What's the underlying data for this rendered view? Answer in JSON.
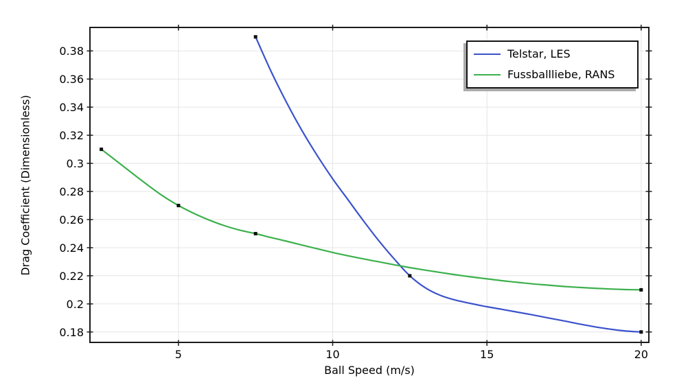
{
  "chart_data": {
    "type": "line",
    "title": "",
    "xlabel": "Ball Speed (m/s)",
    "ylabel": "Drag Coefficient (Dimensionless)",
    "x_range": [
      2.13,
      20.25
    ],
    "y_range": [
      0.1726,
      0.3967
    ],
    "grid": true,
    "legend_position": "top-right",
    "frame_color": "#1a1a1a",
    "grid_color": "#e4e4e4",
    "marker_color": "#111111",
    "x_ticks": [
      {
        "value": 5,
        "label": "5"
      },
      {
        "value": 10,
        "label": "10"
      },
      {
        "value": 15,
        "label": "15"
      },
      {
        "value": 20,
        "label": "20"
      }
    ],
    "y_ticks": [
      {
        "value": 0.18,
        "label": "0.18"
      },
      {
        "value": 0.2,
        "label": "0.2"
      },
      {
        "value": 0.22,
        "label": "0.22"
      },
      {
        "value": 0.24,
        "label": "0.24"
      },
      {
        "value": 0.26,
        "label": "0.26"
      },
      {
        "value": 0.28,
        "label": "0.28"
      },
      {
        "value": 0.3,
        "label": "0.3"
      },
      {
        "value": 0.32,
        "label": "0.32"
      },
      {
        "value": 0.34,
        "label": "0.34"
      },
      {
        "value": 0.36,
        "label": "0.36"
      },
      {
        "value": 0.38,
        "label": "0.38"
      }
    ],
    "series": [
      {
        "name": "Telstar, LES",
        "color": "#3a52cc",
        "marker": "square",
        "points": [
          [
            7.5,
            0.39
          ],
          [
            12.5,
            0.22
          ],
          [
            20,
            0.18
          ]
        ],
        "curve": [
          [
            7.5,
            0.39
          ],
          [
            8,
            0.3655
          ],
          [
            8.5,
            0.3435
          ],
          [
            9,
            0.3235
          ],
          [
            9.5,
            0.3055
          ],
          [
            10,
            0.289
          ],
          [
            10.5,
            0.274
          ],
          [
            11,
            0.259
          ],
          [
            11.5,
            0.2448
          ],
          [
            12,
            0.2318
          ],
          [
            12.5,
            0.22
          ],
          [
            13,
            0.2115
          ],
          [
            13.5,
            0.206
          ],
          [
            14,
            0.2026
          ],
          [
            14.5,
            0.2002
          ],
          [
            15,
            0.198
          ],
          [
            15.5,
            0.1961
          ],
          [
            16,
            0.1941
          ],
          [
            16.5,
            0.1921
          ],
          [
            17,
            0.19
          ],
          [
            17.5,
            0.1879
          ],
          [
            18,
            0.1857
          ],
          [
            18.5,
            0.1837
          ],
          [
            19,
            0.182
          ],
          [
            19.5,
            0.1807
          ],
          [
            20,
            0.18
          ]
        ]
      },
      {
        "name": "Fussballliebe, RANS",
        "color": "#3cb04c",
        "marker": "square",
        "points": [
          [
            2.5,
            0.31
          ],
          [
            5,
            0.27
          ],
          [
            7.5,
            0.25
          ],
          [
            20,
            0.21
          ]
        ],
        "curve": [
          [
            2.5,
            0.31
          ],
          [
            3,
            0.3015
          ],
          [
            3.5,
            0.293
          ],
          [
            4,
            0.2846
          ],
          [
            4.5,
            0.2767
          ],
          [
            5,
            0.27
          ],
          [
            5.5,
            0.2644
          ],
          [
            6,
            0.2596
          ],
          [
            6.5,
            0.2556
          ],
          [
            7,
            0.2524
          ],
          [
            7.5,
            0.25
          ],
          [
            8,
            0.2472
          ],
          [
            8.5,
            0.2446
          ],
          [
            9,
            0.2419
          ],
          [
            9.5,
            0.2392
          ],
          [
            10,
            0.2366
          ],
          [
            10.5,
            0.2342
          ],
          [
            11,
            0.232
          ],
          [
            11.5,
            0.2299
          ],
          [
            12,
            0.2278
          ],
          [
            12.5,
            0.2258
          ],
          [
            13,
            0.224
          ],
          [
            13.5,
            0.2223
          ],
          [
            14,
            0.2207
          ],
          [
            14.5,
            0.2192
          ],
          [
            15,
            0.2178
          ],
          [
            15.5,
            0.2165
          ],
          [
            16,
            0.2153
          ],
          [
            16.5,
            0.2142
          ],
          [
            17,
            0.2133
          ],
          [
            17.5,
            0.2124
          ],
          [
            18,
            0.2117
          ],
          [
            18.5,
            0.2111
          ],
          [
            19,
            0.2106
          ],
          [
            19.5,
            0.2102
          ],
          [
            20,
            0.21
          ]
        ]
      }
    ]
  }
}
